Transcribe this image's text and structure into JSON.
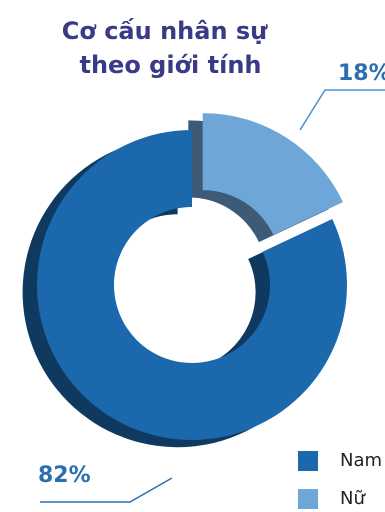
{
  "chart_data": {
    "type": "pie",
    "title": "Cơ cấu nhân sự theo giới tính",
    "title_lines": [
      "Cơ cấu nhân sự",
      "theo giới tính"
    ],
    "categories": [
      "Nam",
      "Nữ"
    ],
    "values": [
      82,
      18
    ],
    "labels": [
      "82%",
      "18%"
    ],
    "colors": [
      "#1b68ad",
      "#6ea6d8"
    ],
    "legend_position": "bottom-right"
  }
}
